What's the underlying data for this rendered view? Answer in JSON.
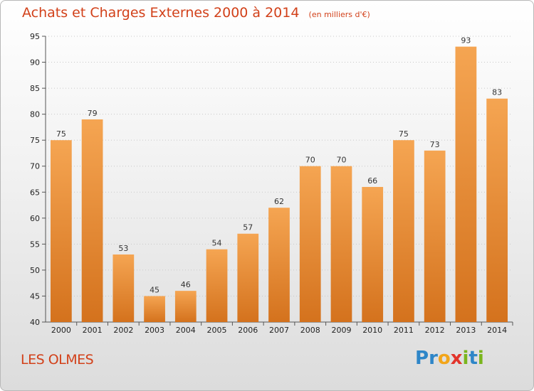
{
  "title": "Achats et Charges Externes 2000 à 2014",
  "subtitle": "(en milliers d'€)",
  "location": "LES OLMES",
  "brand": {
    "text": "Proxiti",
    "letters": [
      {
        "ch": "P",
        "color": "#2e86c8"
      },
      {
        "ch": "r",
        "color": "#2e86c8"
      },
      {
        "ch": "o",
        "color": "#f2a51a"
      },
      {
        "ch": "x",
        "color": "#e2342b"
      },
      {
        "ch": "i",
        "color": "#7ab51d"
      },
      {
        "ch": "t",
        "color": "#2e86c8"
      },
      {
        "ch": "i",
        "color": "#7ab51d"
      }
    ]
  },
  "colors": {
    "bar_top": "#f5a552",
    "bar_bottom": "#d4721d",
    "title": "#d2411a",
    "grid": "#c8c8c8"
  },
  "chart_data": {
    "type": "bar",
    "title": "Achats et Charges Externes 2000 à 2014",
    "subtitle": "(en milliers d'€)",
    "categories": [
      "2000",
      "2001",
      "2002",
      "2003",
      "2004",
      "2005",
      "2006",
      "2007",
      "2008",
      "2009",
      "2010",
      "2011",
      "2012",
      "2013",
      "2014"
    ],
    "values": [
      75,
      79,
      53,
      45,
      46,
      54,
      57,
      62,
      70,
      70,
      66,
      75,
      73,
      93,
      83
    ],
    "ylim": [
      40,
      95
    ],
    "yticks": [
      40,
      45,
      50,
      55,
      60,
      65,
      70,
      75,
      80,
      85,
      90,
      95
    ],
    "grid": true,
    "data_labels": true
  }
}
